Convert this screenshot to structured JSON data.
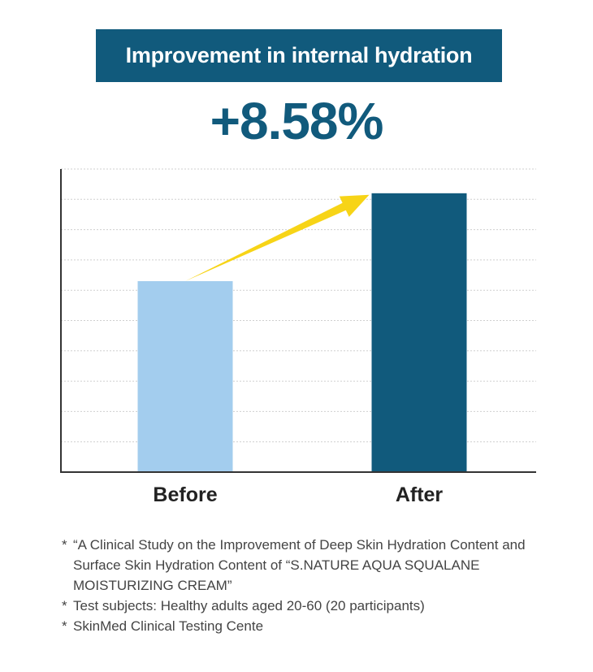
{
  "banner": {
    "text": "Improvement in internal hydration"
  },
  "headline": {
    "text": "+8.58%"
  },
  "chart_data": {
    "type": "bar",
    "categories": [
      "Before",
      "After"
    ],
    "values": [
      63,
      92
    ],
    "ylim": [
      0,
      100
    ],
    "grid": true,
    "colors": {
      "Before": "#a3cdee",
      "After": "#115a7c",
      "arrow": "#f7d417",
      "axis": "#333333",
      "grid": "#cfcfcf"
    }
  },
  "notes": [
    {
      "marker": "*",
      "text": "“A Clinical Study on the Improvement of Deep Skin Hydration Content and Surface Skin Hydration Content of “S.NATURE AQUA SQUALANE MOISTURIZING CREAM”"
    },
    {
      "marker": "*",
      "text": "Test subjects: Healthy adults aged 20-60 (20 participants)"
    },
    {
      "marker": "*",
      "text": "SkinMed Clinical Testing Cente"
    }
  ]
}
